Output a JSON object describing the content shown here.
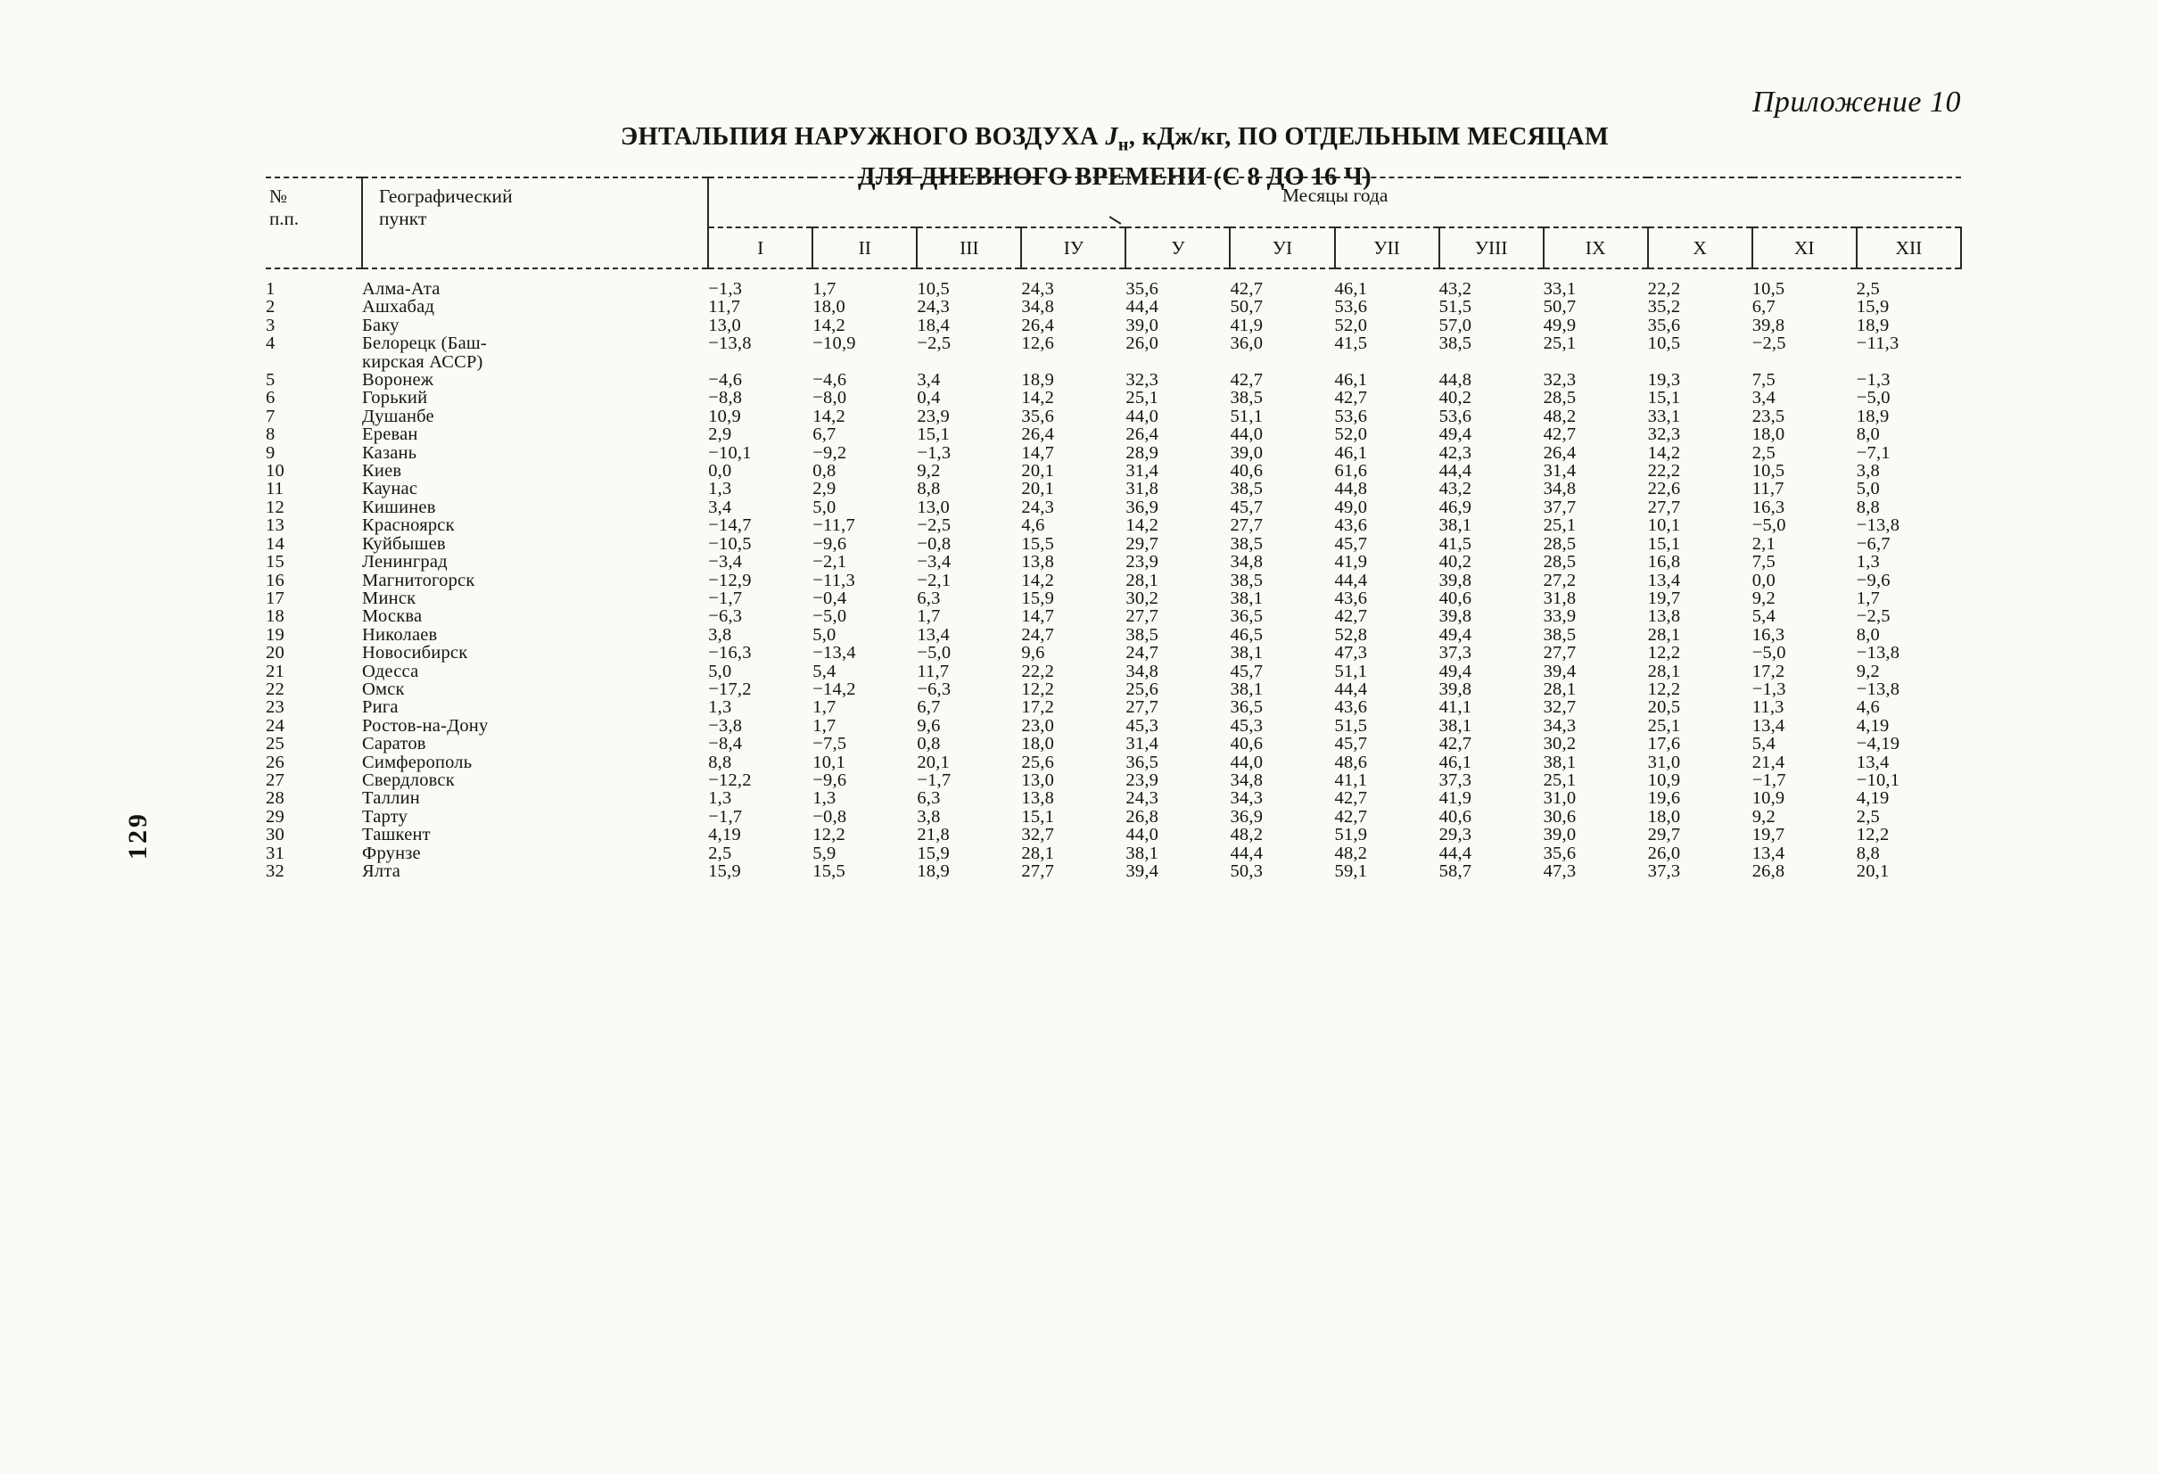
{
  "page": {
    "appendix_label": "Приложение 10",
    "title_pre": "ЭНТАЛЬПИЯ НАРУЖНОГО ВОЗДУХА ",
    "title_j": "J",
    "title_sub": "н",
    "title_post": ", кДж/кг,  ПО ОТДЕЛЬНЫМ МЕСЯЦАМ",
    "title_line2": "ДЛЯ ДНЕВНОГО ВРЕМЕНИ (С 8 ДО 16 Ч)",
    "page_number": "129"
  },
  "table": {
    "col_num_header": "№\nп.п.",
    "col_place_header": "Географический\nпункт",
    "months_group_header": "Месяцы года",
    "months": [
      "I",
      "II",
      "III",
      "IУ",
      "У",
      "УI",
      "УII",
      "УIII",
      "IX",
      "X",
      "XI",
      "XII"
    ],
    "rows": [
      {
        "num": "1",
        "place": "Алма-Ата",
        "values": [
          "−1,3",
          "1,7",
          "10,5",
          "24,3",
          "35,6",
          "42,7",
          "46,1",
          "43,2",
          "33,1",
          "22,2",
          "10,5",
          "2,5"
        ]
      },
      {
        "num": "2",
        "place": "Ашхабад",
        "values": [
          "11,7",
          "18,0",
          "24,3",
          "34,8",
          "44,4",
          "50,7",
          "53,6",
          "51,5",
          "50,7",
          "35,2",
          "6,7",
          "15,9"
        ]
      },
      {
        "num": "3",
        "place": "Баку",
        "values": [
          "13,0",
          "14,2",
          "18,4",
          "26,4",
          "39,0",
          "41,9",
          "52,0",
          "57,0",
          "49,9",
          "35,6",
          "39,8",
          "18,9"
        ]
      },
      {
        "num": "4",
        "place": "Белорецк (Баш-\nкирская АССР)",
        "values": [
          "−13,8",
          "−10,9",
          "−2,5",
          "12,6",
          "26,0",
          "36,0",
          "41,5",
          "38,5",
          "25,1",
          "10,5",
          "−2,5",
          "−11,3"
        ]
      },
      {
        "num": "5",
        "place": "Воронеж",
        "values": [
          "−4,6",
          "−4,6",
          "3,4",
          "18,9",
          "32,3",
          "42,7",
          "46,1",
          "44,8",
          "32,3",
          "19,3",
          "7,5",
          "−1,3"
        ]
      },
      {
        "num": "6",
        "place": "Горький",
        "values": [
          "−8,8",
          "−8,0",
          "0,4",
          "14,2",
          "25,1",
          "38,5",
          "42,7",
          "40,2",
          "28,5",
          "15,1",
          "3,4",
          "−5,0"
        ]
      },
      {
        "num": "7",
        "place": "Душанбе",
        "values": [
          "10,9",
          "14,2",
          "23,9",
          "35,6",
          "44,0",
          "51,1",
          "53,6",
          "53,6",
          "48,2",
          "33,1",
          "23,5",
          "18,9"
        ]
      },
      {
        "num": "8",
        "place": "Ереван",
        "values": [
          "2,9",
          "6,7",
          "15,1",
          "26,4",
          "26,4",
          "44,0",
          "52,0",
          "49,4",
          "42,7",
          "32,3",
          "18,0",
          "8,0"
        ]
      },
      {
        "num": "9",
        "place": "Казань",
        "values": [
          "−10,1",
          "−9,2",
          "−1,3",
          "14,7",
          "28,9",
          "39,0",
          "46,1",
          "42,3",
          "26,4",
          "14,2",
          "2,5",
          "−7,1"
        ]
      },
      {
        "num": "10",
        "place": "Киев",
        "values": [
          "0,0",
          "0,8",
          "9,2",
          "20,1",
          "31,4",
          "40,6",
          "61,6",
          "44,4",
          "31,4",
          "22,2",
          "10,5",
          "3,8"
        ]
      },
      {
        "num": "11",
        "place": "Каунас",
        "values": [
          "1,3",
          "2,9",
          "8,8",
          "20,1",
          "31,8",
          "38,5",
          "44,8",
          "43,2",
          "34,8",
          "22,6",
          "11,7",
          "5,0"
        ]
      },
      {
        "num": "12",
        "place": "Кишинев",
        "values": [
          "3,4",
          "5,0",
          "13,0",
          "24,3",
          "36,9",
          "45,7",
          "49,0",
          "46,9",
          "37,7",
          "27,7",
          "16,3",
          "8,8"
        ]
      },
      {
        "num": "13",
        "place": "Красноярск",
        "values": [
          "−14,7",
          "−11,7",
          "−2,5",
          "4,6",
          "14,2",
          "27,7",
          "43,6",
          "38,1",
          "25,1",
          "10,1",
          "−5,0",
          "−13,8"
        ]
      },
      {
        "num": "14",
        "place": "Куйбышев",
        "values": [
          "−10,5",
          "−9,6",
          "−0,8",
          "15,5",
          "29,7",
          "38,5",
          "45,7",
          "41,5",
          "28,5",
          "15,1",
          "2,1",
          "−6,7"
        ]
      },
      {
        "num": "15",
        "place": "Ленинград",
        "values": [
          "−3,4",
          "−2,1",
          "−3,4",
          "13,8",
          "23,9",
          "34,8",
          "41,9",
          "40,2",
          "28,5",
          "16,8",
          "7,5",
          "1,3"
        ]
      },
      {
        "num": "16",
        "place": "Магнитогорск",
        "values": [
          "−12,9",
          "−11,3",
          "−2,1",
          "14,2",
          "28,1",
          "38,5",
          "44,4",
          "39,8",
          "27,2",
          "13,4",
          "0,0",
          "−9,6"
        ]
      },
      {
        "num": "17",
        "place": "Минск",
        "values": [
          "−1,7",
          "−0,4",
          "6,3",
          "15,9",
          "30,2",
          "38,1",
          "43,6",
          "40,6",
          "31,8",
          "19,7",
          "9,2",
          "1,7"
        ]
      },
      {
        "num": "18",
        "place": "Москва",
        "values": [
          "−6,3",
          "−5,0",
          "1,7",
          "14,7",
          "27,7",
          "36,5",
          "42,7",
          "39,8",
          "33,9",
          "13,8",
          "5,4",
          "−2,5"
        ]
      },
      {
        "num": "19",
        "place": "Николаев",
        "values": [
          "3,8",
          "5,0",
          "13,4",
          "24,7",
          "38,5",
          "46,5",
          "52,8",
          "49,4",
          "38,5",
          "28,1",
          "16,3",
          "8,0"
        ]
      },
      {
        "num": "20",
        "place": "Новосибирск",
        "values": [
          "−16,3",
          "−13,4",
          "−5,0",
          "9,6",
          "24,7",
          "38,1",
          "47,3",
          "37,3",
          "27,7",
          "12,2",
          "−5,0",
          "−13,8"
        ]
      },
      {
        "num": "21",
        "place": "Одесса",
        "values": [
          "5,0",
          "5,4",
          "11,7",
          "22,2",
          "34,8",
          "45,7",
          "51,1",
          "49,4",
          "39,4",
          "28,1",
          "17,2",
          "9,2"
        ]
      },
      {
        "num": "22",
        "place": "Омск",
        "values": [
          "−17,2",
          "−14,2",
          "−6,3",
          "12,2",
          "25,6",
          "38,1",
          "44,4",
          "39,8",
          "28,1",
          "12,2",
          "−1,3",
          "−13,8"
        ]
      },
      {
        "num": "23",
        "place": "Рига",
        "values": [
          "1,3",
          "1,7",
          "6,7",
          "17,2",
          "27,7",
          "36,5",
          "43,6",
          "41,1",
          "32,7",
          "20,5",
          "11,3",
          "4,6"
        ]
      },
      {
        "num": "24",
        "place": "Ростов-на-Дону",
        "values": [
          "−3,8",
          "1,7",
          "9,6",
          "23,0",
          "45,3",
          "45,3",
          "51,5",
          "38,1",
          "34,3",
          "25,1",
          "13,4",
          "4,19"
        ]
      },
      {
        "num": "25",
        "place": "Саратов",
        "values": [
          "−8,4",
          "−7,5",
          "0,8",
          "18,0",
          "31,4",
          "40,6",
          "45,7",
          "42,7",
          "30,2",
          "17,6",
          "5,4",
          "−4,19"
        ]
      },
      {
        "num": "26",
        "place": "Симферополь",
        "values": [
          "8,8",
          "10,1",
          "20,1",
          "25,6",
          "36,5",
          "44,0",
          "48,6",
          "46,1",
          "38,1",
          "31,0",
          "21,4",
          "13,4"
        ]
      },
      {
        "num": "27",
        "place": "Свердловск",
        "values": [
          "−12,2",
          "−9,6",
          "−1,7",
          "13,0",
          "23,9",
          "34,8",
          "41,1",
          "37,3",
          "25,1",
          "10,9",
          "−1,7",
          "−10,1"
        ]
      },
      {
        "num": "28",
        "place": "Таллин",
        "values": [
          "1,3",
          "1,3",
          "6,3",
          "13,8",
          "24,3",
          "34,3",
          "42,7",
          "41,9",
          "31,0",
          "19,6",
          "10,9",
          "4,19"
        ]
      },
      {
        "num": "29",
        "place": "Тарту",
        "values": [
          "−1,7",
          "−0,8",
          "3,8",
          "15,1",
          "26,8",
          "36,9",
          "42,7",
          "40,6",
          "30,6",
          "18,0",
          "9,2",
          "2,5"
        ]
      },
      {
        "num": "30",
        "place": "Ташкент",
        "values": [
          "4,19",
          "12,2",
          "21,8",
          "32,7",
          "44,0",
          "48,2",
          "51,9",
          "29,3",
          "39,0",
          "29,7",
          "19,7",
          "12,2"
        ]
      },
      {
        "num": "31",
        "place": "Фрунзе",
        "values": [
          "2,5",
          "5,9",
          "15,9",
          "28,1",
          "38,1",
          "44,4",
          "48,2",
          "44,4",
          "35,6",
          "26,0",
          "13,4",
          "8,8"
        ]
      },
      {
        "num": "32",
        "place": "Ялта",
        "values": [
          "15,9",
          "15,5",
          "18,9",
          "27,7",
          "39,4",
          "50,3",
          "59,1",
          "58,7",
          "47,3",
          "37,3",
          "26,8",
          "20,1"
        ]
      }
    ]
  }
}
